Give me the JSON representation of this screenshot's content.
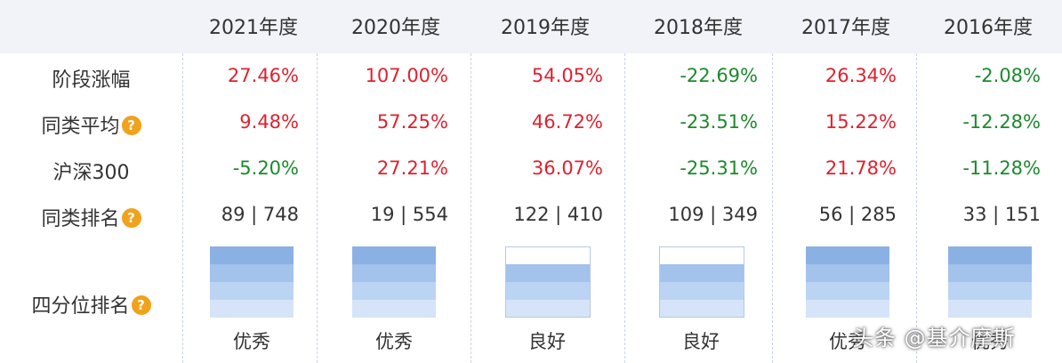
{
  "years": [
    "2021年度",
    "2020年度",
    "2019年度",
    "2018年度",
    "2017年度",
    "2016年度"
  ],
  "rows": {
    "period_gain": {
      "label": "阶段涨幅",
      "values": [
        "27.46%",
        "107.00%",
        "54.05%",
        "-22.69%",
        "26.34%",
        "-2.08%"
      ]
    },
    "peer_avg": {
      "label": "同类平均",
      "values": [
        "9.48%",
        "57.25%",
        "46.72%",
        "-23.51%",
        "15.22%",
        "-12.28%"
      ]
    },
    "csi300": {
      "label": "沪深300",
      "values": [
        "-5.20%",
        "27.21%",
        "36.07%",
        "-25.31%",
        "21.78%",
        "-11.28%"
      ]
    },
    "peer_rank": {
      "label": "同类排名",
      "values": [
        "89 | 748",
        "19 | 554",
        "122 | 410",
        "109 | 349",
        "56 | 285",
        "33 | 151"
      ]
    },
    "quartile": {
      "label": "四分位排名",
      "values": [
        "优秀",
        "优秀",
        "良好",
        "良好",
        "优秀",
        "优秀"
      ],
      "levels": [
        4,
        4,
        3,
        3,
        4,
        4
      ]
    }
  },
  "help_glyph": "?",
  "colors": {
    "positive": "#e0212e",
    "negative": "#1c8a2c",
    "header_bg": "#f1f3f8",
    "help_icon": "#f0a21a"
  },
  "watermark": "头条 @基介摩斯"
}
